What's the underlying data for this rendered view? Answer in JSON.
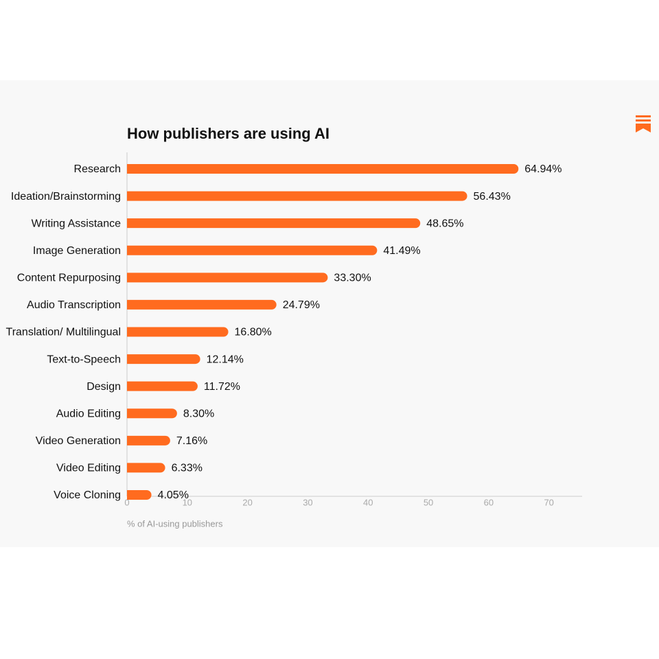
{
  "chart_data": {
    "type": "bar",
    "orientation": "horizontal",
    "title": "How publishers are using AI",
    "categories": [
      "Research",
      "Ideation/Brainstorming",
      "Writing Assistance",
      "Image Generation",
      "Content Repurposing",
      "Audio Transcription",
      "Translation/ Multilingual",
      "Text-to-Speech",
      "Design",
      "Audio Editing",
      "Video Generation",
      "Video Editing",
      "Voice Cloning"
    ],
    "values": [
      64.94,
      56.43,
      48.65,
      41.49,
      33.3,
      24.79,
      16.8,
      12.14,
      11.72,
      8.3,
      7.16,
      6.33,
      4.05
    ],
    "value_labels": [
      "64.94%",
      "56.43%",
      "48.65%",
      "41.49%",
      "33.30%",
      "24.79%",
      "16.80%",
      "12.14%",
      "11.72%",
      "8.30%",
      "7.16%",
      "6.33%",
      "4.05%"
    ],
    "color": "#ff6b1f",
    "xlim": [
      0,
      75.5
    ],
    "xticks": [
      0,
      10,
      20,
      30,
      40,
      50,
      60,
      70
    ],
    "xlabel": "% of AI-using publishers"
  }
}
